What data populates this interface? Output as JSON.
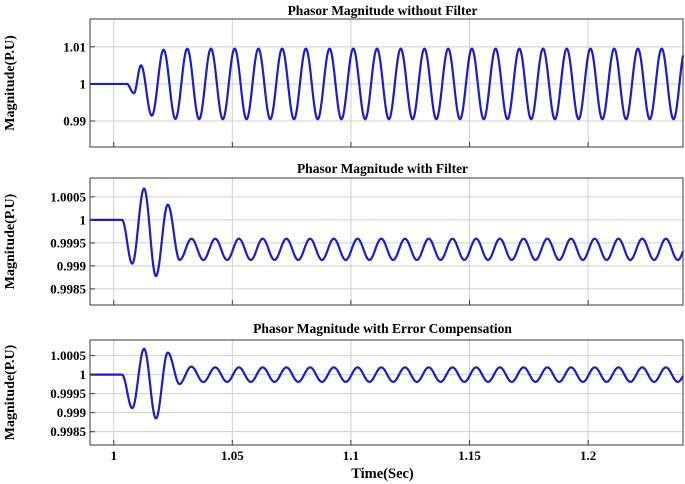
{
  "chart_data": [
    {
      "type": "line",
      "title": "Phasor Magnitude without Filter",
      "ylabel": "Magnitude(P.U)",
      "xlabel": "",
      "xlim": [
        0.99,
        1.24
      ],
      "ylim": [
        0.983,
        1.0175
      ],
      "x_ticks": [
        1,
        1.05,
        1.1,
        1.15,
        1.2
      ],
      "x_tick_labels": [],
      "y_ticks": [
        0.99,
        1,
        1.01
      ],
      "y_tick_labels": [
        "0.99",
        "1",
        "1.01"
      ],
      "grid": true,
      "color": "#1c1cc8",
      "series": [
        {
          "x_start": 0.99,
          "x_end": 1.24,
          "steady_value": 1.0,
          "disturbance_start": 1.0055,
          "oscillation_frequency_hz": 100,
          "oscillation_center": 1.0,
          "oscillation_amplitude": 0.0095,
          "transient_peaks": [
            {
              "x": 1.0085,
              "y": 0.9975
            },
            {
              "x": 1.0115,
              "y": 1.005
            },
            {
              "x": 1.016,
              "y": 0.9915
            }
          ]
        }
      ]
    },
    {
      "type": "line",
      "title": "Phasor Magnitude with Filter",
      "ylabel": "Magnitude(P.U)",
      "xlabel": "",
      "xlim": [
        0.99,
        1.24
      ],
      "ylim": [
        0.99815,
        1.00091
      ],
      "x_ticks": [
        1,
        1.05,
        1.1,
        1.15,
        1.2
      ],
      "x_tick_labels": [],
      "y_ticks": [
        0.9985,
        0.999,
        0.9995,
        1,
        1.0005
      ],
      "y_tick_labels": [
        "0.9985",
        "0.999",
        "0.9995",
        "1",
        "1.0005"
      ],
      "grid": true,
      "color": "#1c1cc8",
      "series": [
        {
          "x_start": 0.99,
          "x_end": 1.24,
          "steady_value": 1.0,
          "disturbance_start": 1.0035,
          "oscillation_frequency_hz": 100,
          "oscillation_center": 0.99936,
          "oscillation_amplitude": 0.00023,
          "transient_peaks": [
            {
              "x": 1.0078,
              "y": 0.99905
            },
            {
              "x": 1.0128,
              "y": 1.00068
            },
            {
              "x": 1.0178,
              "y": 0.99878
            },
            {
              "x": 1.0228,
              "y": 1.00033
            },
            {
              "x": 1.0278,
              "y": 0.99913
            }
          ]
        }
      ]
    },
    {
      "type": "line",
      "title": "Phasor Magnitude with Error Compensation",
      "ylabel": "Magnitude(P.U)",
      "xlabel": "Time(Sec)",
      "xlim": [
        0.99,
        1.24
      ],
      "ylim": [
        0.99815,
        1.00091
      ],
      "x_ticks": [
        1,
        1.05,
        1.1,
        1.15,
        1.2
      ],
      "x_tick_labels": [
        "1",
        "1.05",
        "1.1",
        "1.15",
        "1.2"
      ],
      "y_ticks": [
        0.9985,
        0.999,
        0.9995,
        1,
        1.0005
      ],
      "y_tick_labels": [
        "0.9985",
        "0.999",
        "0.9995",
        "1",
        "1.0005"
      ],
      "grid": true,
      "color": "#1c1cc8",
      "series": [
        {
          "x_start": 0.99,
          "x_end": 1.24,
          "steady_value": 1.0,
          "disturbance_start": 1.0035,
          "oscillation_frequency_hz": 100,
          "oscillation_center": 1.0,
          "oscillation_amplitude": 0.00019,
          "transient_peaks": [
            {
              "x": 1.0078,
              "y": 0.99912
            },
            {
              "x": 1.0128,
              "y": 1.00068
            },
            {
              "x": 1.0178,
              "y": 0.99885
            },
            {
              "x": 1.0228,
              "y": 1.00058
            },
            {
              "x": 1.0278,
              "y": 0.99975
            }
          ]
        }
      ]
    }
  ]
}
